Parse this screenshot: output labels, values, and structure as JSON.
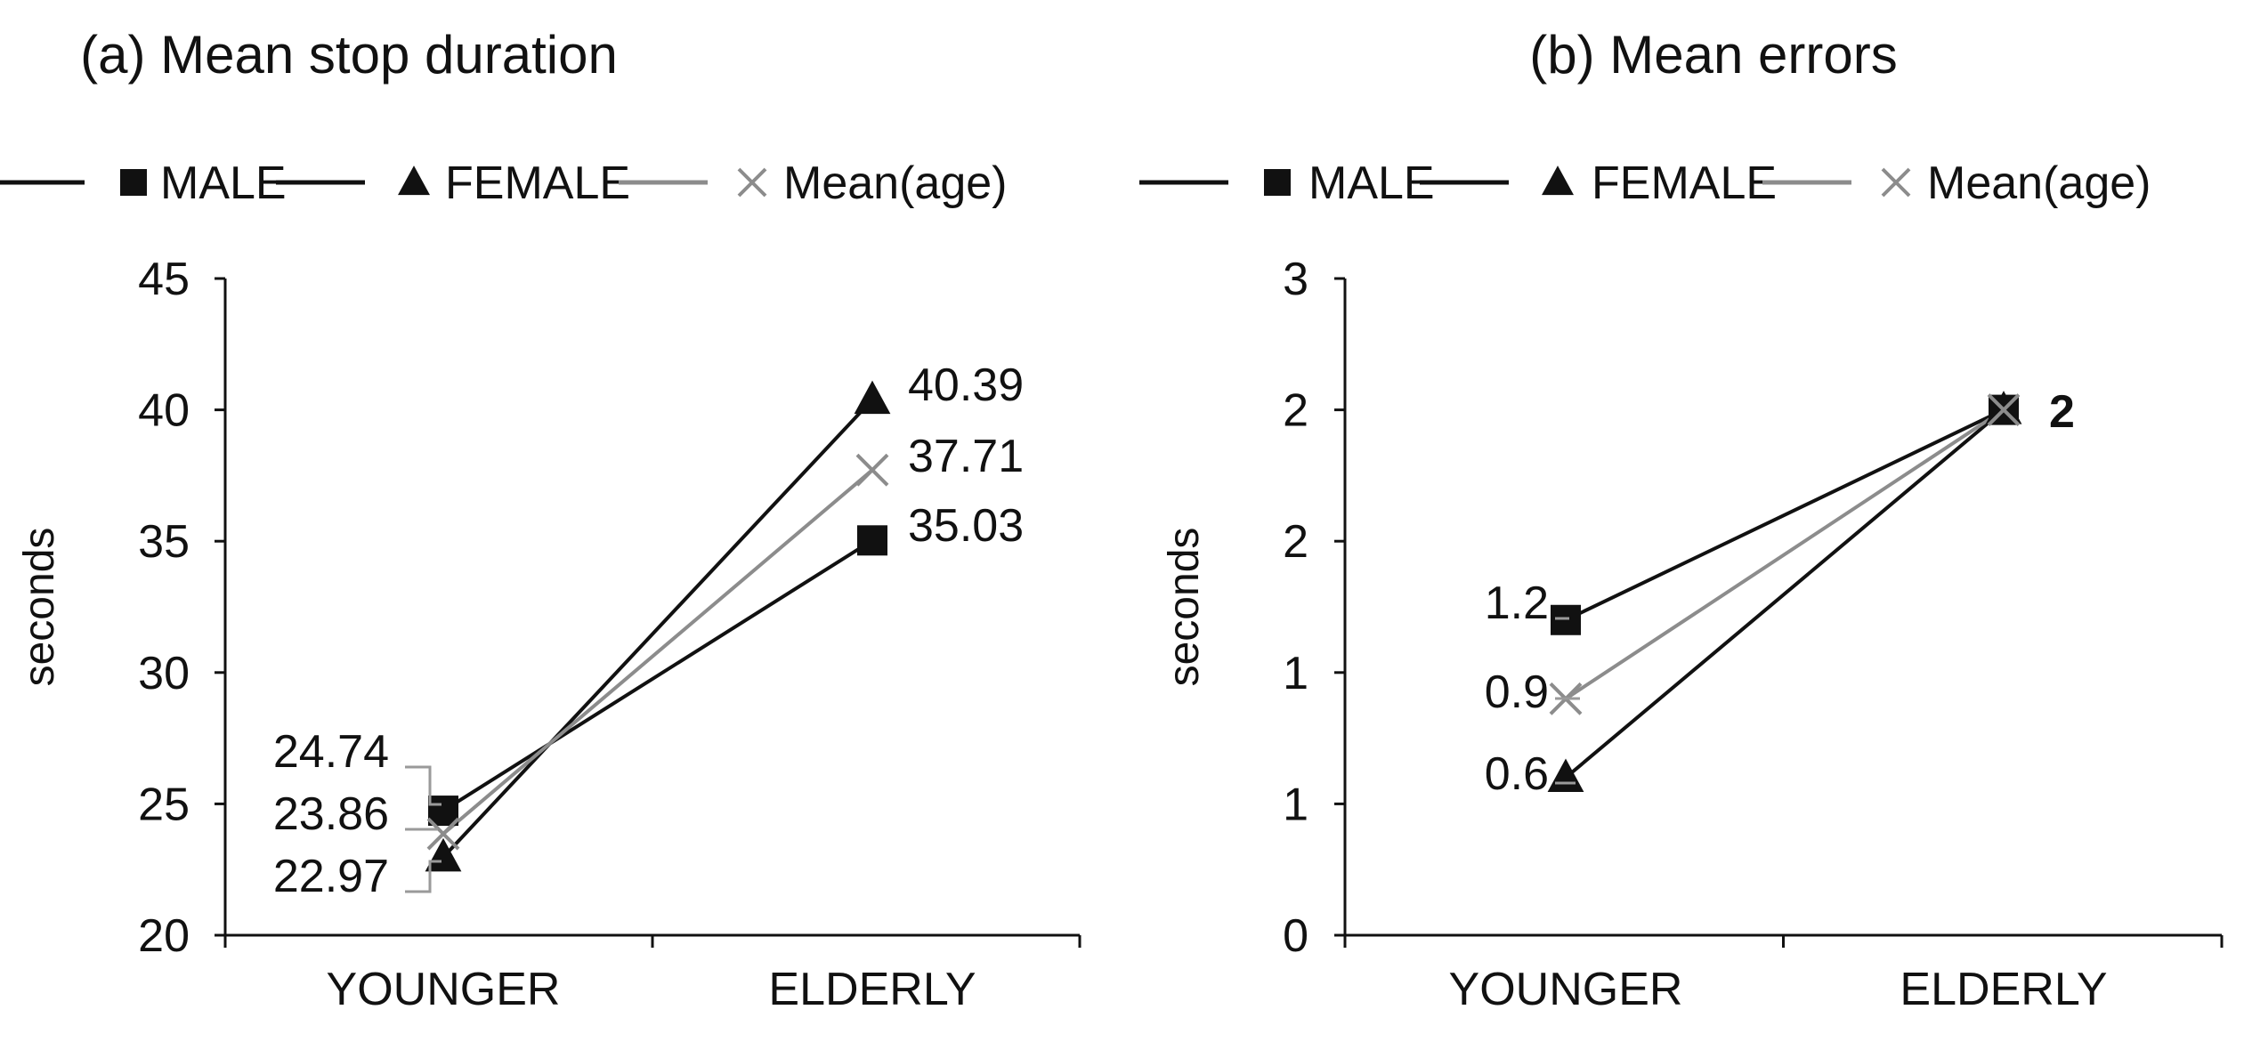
{
  "chart_data": [
    {
      "type": "line",
      "title": "(a) Mean stop duration",
      "ylabel": "seconds",
      "xlabel": "",
      "categories": [
        "YOUNGER",
        "ELDERLY"
      ],
      "ylim": [
        20,
        45
      ],
      "yticks": [
        "20",
        "25",
        "30",
        "35",
        "40",
        "45"
      ],
      "legend_position": "top",
      "grid": false,
      "series": [
        {
          "name": "MALE",
          "marker": "square",
          "color": "#111111",
          "values": [
            24.74,
            35.03
          ],
          "labels": [
            "24.74",
            "35.03"
          ]
        },
        {
          "name": "FEMALE",
          "marker": "triangle",
          "color": "#111111",
          "values": [
            22.97,
            40.39
          ],
          "labels": [
            "22.97",
            "40.39"
          ]
        },
        {
          "name": "Mean(age)",
          "marker": "x",
          "color": "#8c8c8c",
          "values": [
            23.86,
            37.71
          ],
          "labels": [
            "23.86",
            "37.71"
          ]
        }
      ]
    },
    {
      "type": "line",
      "title": "(b) Mean errors",
      "ylabel": "seconds",
      "xlabel": "",
      "categories": [
        "YOUNGER",
        "ELDERLY"
      ],
      "ylim": [
        0,
        2.5
      ],
      "yticks": [
        "0",
        "1",
        "1",
        "2",
        "2",
        "3"
      ],
      "legend_position": "top",
      "grid": false,
      "series": [
        {
          "name": "MALE",
          "marker": "square",
          "color": "#111111",
          "values": [
            1.2,
            2
          ],
          "labels": [
            "1.2",
            "2"
          ]
        },
        {
          "name": "FEMALE",
          "marker": "triangle",
          "color": "#111111",
          "values": [
            0.6,
            2
          ],
          "labels": [
            "0.6",
            ""
          ]
        },
        {
          "name": "Mean(age)",
          "marker": "x",
          "color": "#8c8c8c",
          "values": [
            0.9,
            2
          ],
          "labels": [
            "0.9",
            ""
          ]
        }
      ]
    }
  ]
}
